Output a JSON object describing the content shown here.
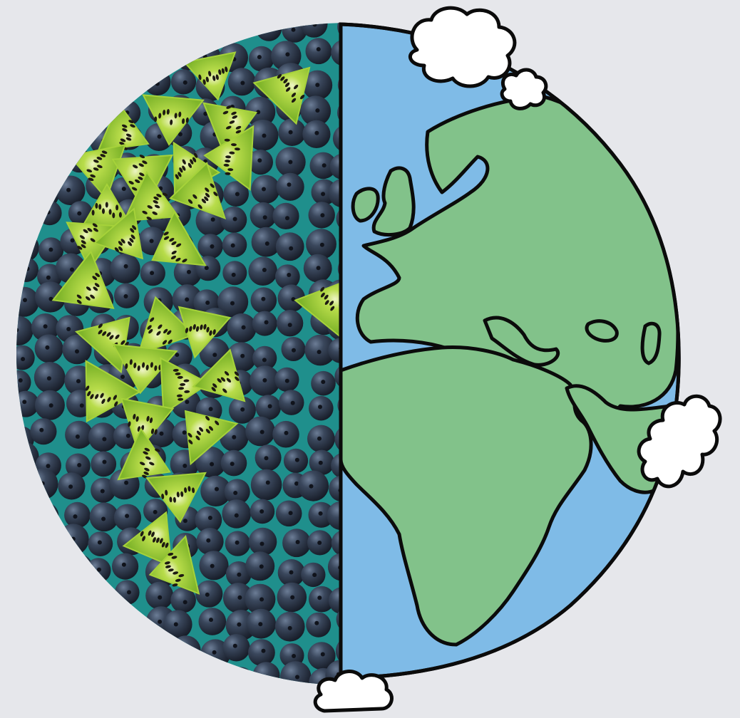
{
  "scene": {
    "subject": "half-globe-illustration",
    "left_half": "fruit-mosaic",
    "right_half": "cartoon-earth-map",
    "fruits": [
      "blueberry",
      "kiwi-slice"
    ],
    "colors": {
      "background": "#e6e7eb",
      "ocean": "#7fbbe7",
      "land": "#82c28a",
      "outline": "#0b0b0b",
      "cloud": "#ffffff",
      "blueberry": "#273040",
      "blueberry_highlight": "#5a6a80",
      "kiwi_flesh": "#9fcf2f",
      "kiwi_center": "#e6efb8",
      "kiwi_seed": "#1e1a12",
      "fruit_backdrop": "#1f8f8c"
    },
    "icons": [
      "cloud-icon",
      "blueberry-icon",
      "kiwi-icon"
    ]
  }
}
